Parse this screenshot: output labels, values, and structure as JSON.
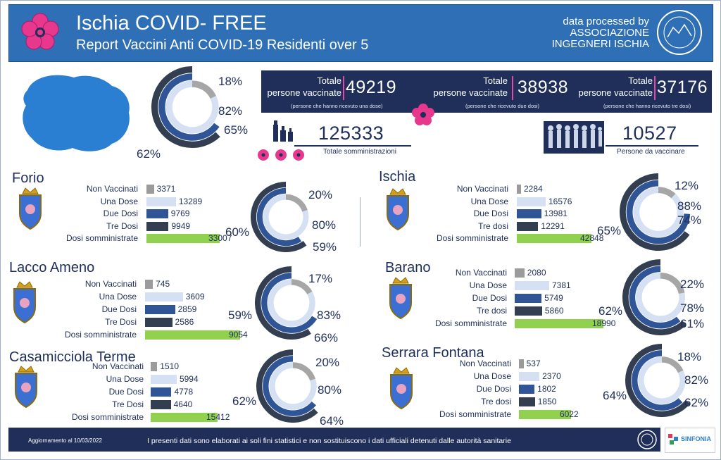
{
  "header": {
    "title": "Ischia COVID- FREE",
    "subtitle": "Report Vaccini Anti COVID-19 Residenti over 5",
    "credit_line1": "data processed by",
    "credit_line2": "ASSOCIAZIONE",
    "credit_line3": "INGEGNERI ISCHIA",
    "seal_text": "ASSOCIAZIONE INGEGNERI"
  },
  "totals": {
    "label_line1": "Totale",
    "label_line2": "persone vaccinate",
    "one_dose": "49219",
    "one_dose_note": "(persone che hanno ricevuto una dose)",
    "two_doses": "38938",
    "two_doses_note": "(persone che ricevuto due dosi)",
    "three_doses": "37176",
    "three_doses_note": "(persone che hanno ricevuto tre dosi)",
    "administrations": "125333",
    "administrations_label": "Totale somministrazioni",
    "to_vaccinate": "10527",
    "to_vaccinate_label": "Persone da vaccinare"
  },
  "island": {
    "pct_not": "18%",
    "pct_one": "82%",
    "pct_two": "65%",
    "pct_three": "62%",
    "not": 0.18,
    "one": 0.82,
    "two": 0.65,
    "three": 0.62
  },
  "row_labels": {
    "non": "Non Vaccinati",
    "una": "Una Dose",
    "due": "Due Dosi",
    "tre_upper": "Tre Dosi",
    "tre_lower": "Tre dosi",
    "dosi": "Dosi somministrate"
  },
  "colors": {
    "non": "#9b9b9b",
    "una": "#d5e0f2",
    "due": "#2f5597",
    "tre": "#333f50",
    "dosi": "#92d050",
    "ring_three": "#333f50",
    "ring_two": "#2f5597",
    "ring_one": "#d5e0f2",
    "ring_not": "#a6a6a6"
  },
  "chart_data": [
    {
      "type": "bar",
      "title": "Forio",
      "categories": [
        "Non Vaccinati",
        "Una Dose",
        "Due Dosi",
        "Tre Dosi",
        "Dosi somministrate"
      ],
      "values": [
        3371,
        13289,
        9769,
        9949,
        33007
      ],
      "rings": {
        "not": 0.2,
        "one": 0.8,
        "two": 0.59,
        "three": 0.6
      },
      "ring_labels": [
        "20%",
        "80%",
        "59%",
        "60%"
      ]
    },
    {
      "type": "bar",
      "title": "Lacco Ameno",
      "categories": [
        "Non Vaccinati",
        "Una Dose",
        "Due Dosi",
        "Tre Dosi",
        "Dosi somministrate"
      ],
      "values": [
        745,
        3609,
        2859,
        2586,
        9054
      ],
      "rings": {
        "not": 0.17,
        "one": 0.83,
        "two": 0.66,
        "three": 0.59
      },
      "ring_labels": [
        "17%",
        "83%",
        "66%",
        "59%"
      ]
    },
    {
      "type": "bar",
      "title": "Casamicciola Terme",
      "categories": [
        "Non Vaccinati",
        "Una Dose",
        "Due Dosi",
        "Tre Dosi",
        "Dosi somministrate"
      ],
      "values": [
        1510,
        5994,
        4778,
        4640,
        15412
      ],
      "rings": {
        "not": 0.2,
        "one": 0.8,
        "two": 0.64,
        "three": 0.62
      },
      "ring_labels": [
        "20%",
        "80%",
        "64%",
        "62%"
      ]
    },
    {
      "type": "bar",
      "title": "Ischia",
      "categories": [
        "Non Vaccinati",
        "Una Dose",
        "Due Dosi",
        "Tre dosi",
        "Dosi somministrate"
      ],
      "values": [
        2284,
        16576,
        13981,
        12291,
        42848
      ],
      "rings": {
        "not": 0.12,
        "one": 0.88,
        "two": 0.74,
        "three": 0.65
      },
      "ring_labels": [
        "12%",
        "88%",
        "74%",
        "65%"
      ]
    },
    {
      "type": "bar",
      "title": "Barano",
      "categories": [
        "Non Vaccinati",
        "Una Dose",
        "Due Dosi",
        "Tre dosi",
        "Dosi somministrate"
      ],
      "values": [
        2080,
        7381,
        5749,
        5860,
        18990
      ],
      "rings": {
        "not": 0.22,
        "one": 0.78,
        "two": 0.61,
        "three": 0.62
      },
      "ring_labels": [
        "22%",
        "78%",
        "61%",
        "62%"
      ]
    },
    {
      "type": "bar",
      "title": "Serrara Fontana",
      "categories": [
        "Non Vaccinati",
        "Una Dose",
        "Due Dosi",
        "Tre dosi",
        "Dosi somministrate"
      ],
      "values": [
        537,
        2370,
        1802,
        1850,
        6022
      ],
      "rings": {
        "not": 0.18,
        "one": 0.82,
        "two": 0.62,
        "three": 0.64
      },
      "ring_labels": [
        "18%",
        "82%",
        "62%",
        "64%"
      ]
    }
  ],
  "footer": {
    "updated": "Aggiornamento al  10/03/2022",
    "disclaimer": "I presenti dati sono elaborati ai soli fini statistici e non sostituiscono i dati ufficiali detenuti dalle autorità sanitarie",
    "partner": "SINFONIA"
  }
}
